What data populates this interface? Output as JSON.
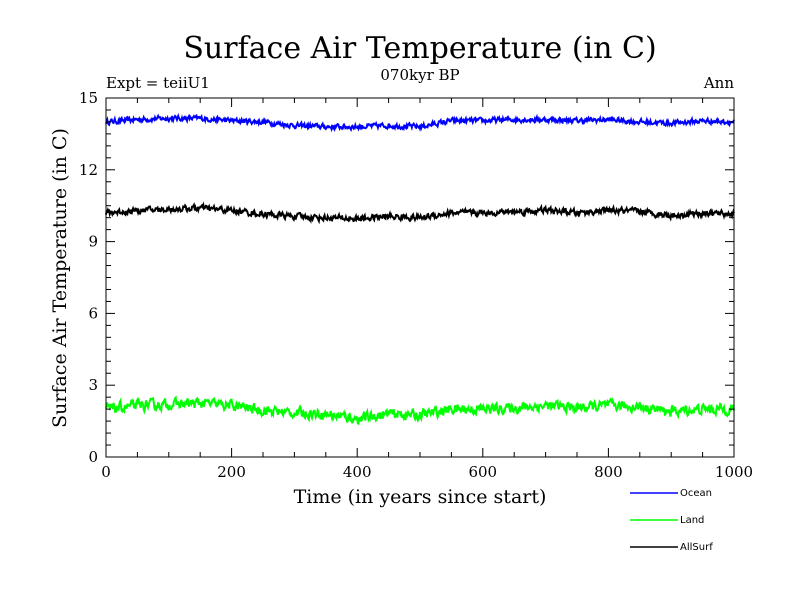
{
  "chart_data": {
    "type": "line",
    "title": "Surface Air Temperature (in C)",
    "subtitle": "070kyr BP",
    "experiment_label": "Expt = teiiU1",
    "period_label": "Ann",
    "xlabel": "Time (in years since start)",
    "ylabel": "Surface Air Temperature (in C)",
    "xlim": [
      0,
      1000
    ],
    "ylim": [
      0,
      15
    ],
    "xticks": [
      0,
      200,
      400,
      600,
      800,
      1000
    ],
    "xtick_labels": [
      "0",
      "200",
      "400",
      "600",
      "800",
      "1000"
    ],
    "yticks": [
      0,
      3,
      6,
      9,
      12,
      15
    ],
    "ytick_labels": [
      "0",
      "3",
      "6",
      "9",
      "12",
      "15"
    ],
    "grid": false,
    "legend_position": "bottom-right",
    "series": [
      {
        "name": "Ocean",
        "color": "#0000ff",
        "x": [
          0,
          50,
          100,
          150,
          200,
          250,
          300,
          350,
          400,
          450,
          500,
          550,
          600,
          650,
          700,
          750,
          800,
          850,
          900,
          950,
          1000
        ],
        "y": [
          14.0,
          14.1,
          14.15,
          14.15,
          14.05,
          14.0,
          13.85,
          13.8,
          13.8,
          13.85,
          13.8,
          14.05,
          14.05,
          14.1,
          14.1,
          14.05,
          14.1,
          14.0,
          13.95,
          14.05,
          14.0
        ]
      },
      {
        "name": "Land",
        "color": "#00ff00",
        "x": [
          0,
          50,
          100,
          150,
          200,
          250,
          300,
          350,
          400,
          450,
          500,
          550,
          600,
          650,
          700,
          750,
          800,
          850,
          900,
          950,
          1000
        ],
        "y": [
          2.0,
          2.15,
          2.2,
          2.25,
          2.15,
          1.95,
          1.85,
          1.8,
          1.6,
          1.8,
          1.75,
          2.0,
          2.0,
          2.05,
          2.15,
          2.05,
          2.15,
          2.1,
          1.9,
          2.0,
          2.0
        ]
      },
      {
        "name": "AllSurf",
        "color": "#000000",
        "x": [
          0,
          50,
          100,
          150,
          200,
          250,
          300,
          350,
          400,
          450,
          500,
          550,
          600,
          650,
          700,
          750,
          800,
          850,
          900,
          950,
          1000
        ],
        "y": [
          10.2,
          10.3,
          10.35,
          10.4,
          10.3,
          10.15,
          10.05,
          10.0,
          9.95,
          10.05,
          10.0,
          10.2,
          10.2,
          10.25,
          10.3,
          10.2,
          10.3,
          10.25,
          10.1,
          10.2,
          10.15
        ]
      }
    ]
  }
}
